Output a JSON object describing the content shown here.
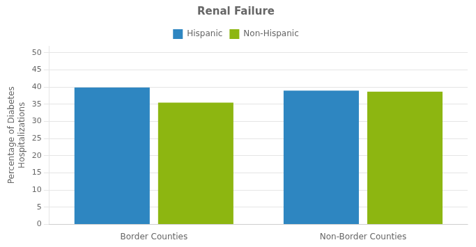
{
  "chart_data": {
    "type": "bar",
    "title": "Renal Failure",
    "ylabel": "Percentage of Diabetes\nHospitalizations",
    "categories": [
      "Border Counties",
      "Non-Border Counties"
    ],
    "series": [
      {
        "name": "Hispanic",
        "values": [
          39.9,
          39.0
        ],
        "color": "#2E86C1"
      },
      {
        "name": "Non-Hispanic",
        "values": [
          35.5,
          38.7
        ],
        "color": "#8DB611"
      }
    ],
    "ylim": [
      0,
      52
    ],
    "yticks": [
      0,
      5,
      10,
      15,
      20,
      25,
      30,
      35,
      40,
      45,
      50
    ],
    "grid": true,
    "legend": "top"
  }
}
